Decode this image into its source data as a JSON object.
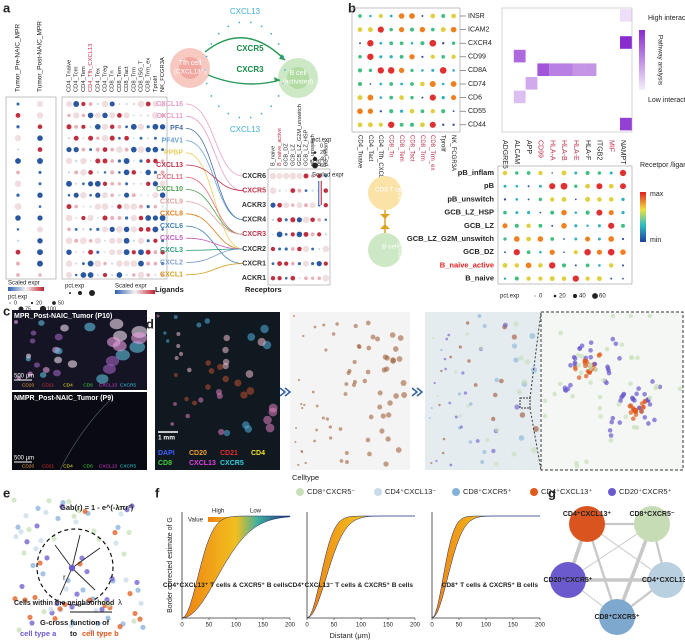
{
  "panel_a": {
    "label": "a",
    "sample_columns": [
      "Tumor_Pre-NAIC_MPR",
      "Tumor_Post-NAIC_MPR"
    ],
    "cell_columns": [
      "CD4_Tnaive",
      "CD4_Tcm",
      "CD4_Tem",
      "CD4_Tfh_CXCL13",
      "CD4_Tex",
      "CD4_Treg",
      "CD8_Tn",
      "CD8_Tem",
      "CD8_Tact",
      "CD8_Trm",
      "CD8_ISG_T",
      "CD8_Trm_ex",
      "Tprolif",
      "NK_FCGR3A"
    ],
    "left_legend": {
      "expr_title": "Scaled expr",
      "pct_title": "pct.exp",
      "pct_ticks": [
        0,
        20,
        50,
        75,
        100
      ]
    },
    "mid_legend": {
      "expr_title": "Scaled expr",
      "pct_title": "pct.exp"
    },
    "diagram": {
      "ligand_top": "CXCL13",
      "tfh": "Tfh cell",
      "tfh_sub": "(CXCL13⁺)",
      "receptor_1": "CXCR5",
      "receptor_2": "CXCR3",
      "b_cell": "B cell",
      "b_sub": "(activated)",
      "ligand_bottom": "CXCL13"
    },
    "ligands": [
      "CXCL16",
      "CXCL11",
      "PF4",
      "PF4V1",
      "PPBP",
      "CXCL13",
      "CXCL11",
      "CXCL10",
      "CXCL9",
      "CXCL8",
      "CXCL6",
      "CXCL5",
      "CXCL3",
      "CXCL2",
      "CXCL1"
    ],
    "ligand_colors": [
      "#e8a0c8",
      "#e8a0c8",
      "#4a6fa5",
      "#6aa0d8",
      "#e8d060",
      "#c0304a",
      "#e07080",
      "#50a050",
      "#e0a0a0",
      "#e08020",
      "#4080b0",
      "#c060c0",
      "#30a080",
      "#80a0d0",
      "#d0a020"
    ],
    "ligands_title": "Ligands",
    "receptors": [
      "CXCR6",
      "CXCR5",
      "ACKR3",
      "CXCR4",
      "CXCR3",
      "CXCR2",
      "CXCR1",
      "ACKR1"
    ],
    "receptor_colors": [
      "#333333",
      "#c0304a",
      "#333333",
      "#333333",
      "#c0304a",
      "#333333",
      "#333333",
      "#333333"
    ],
    "receptors_title": "Receptors",
    "receptor_columns": [
      "B_naive",
      "B_naive_active",
      "GCB_DZ",
      "GCB_LZ",
      "GCB_LZ_G2M_unswitch",
      "GCB_LZ_HSP",
      "pB_unswitch",
      "pB",
      "pB_inflam"
    ],
    "pct_legend": {
      "title": "pct.exp",
      "ticks": [
        0,
        20,
        40,
        60
      ]
    },
    "expr_legend": {
      "title": "Scaled expr"
    }
  },
  "panel_b": {
    "label": "b",
    "genes": [
      "INSR",
      "ICAM2",
      "CXCR4",
      "CD99",
      "CD8A",
      "CD74",
      "CD6",
      "CD55",
      "CD44"
    ],
    "cell_columns": [
      "CD4_Tnaive",
      "CD4_Tact",
      "CD4_Tfh_CXCL13",
      "CD8_Tn",
      "CD8_Tem",
      "CD8_Tact",
      "CD8_Trm",
      "CD8_Trm_ex",
      "Tprolif",
      "NK_FCGR3A"
    ],
    "high": "High interaction",
    "low": "Low interaction",
    "pathway": "Pathway analysis",
    "ligand_columns": [
      "ADGRE5",
      "ALCAM",
      "APP",
      "CD99",
      "HLA-A",
      "HLA-B",
      "HLA-E",
      "HLA-F",
      "ITGB2",
      "MIF",
      "NAMPT"
    ],
    "b_rows": [
      "pB_inflam",
      "pB",
      "pB_unswitch",
      "GCB_LZ_HSP",
      "GCB_LZ",
      "GCB_LZ_G2M_unswitch",
      "GCB_DZ",
      "B_naive_active",
      "B_naive"
    ],
    "cd8_cell": "CD8 T cell",
    "cd8_sub": "(Functional)",
    "b_cell": "B cell",
    "b_sub": "(activated)",
    "expr_title": "Recetpor /ligand expression",
    "max": "max",
    "min": "min",
    "pct_title": "pct.exp",
    "pct_ticks": [
      0,
      20,
      40,
      60
    ]
  },
  "panel_c": {
    "label": "c",
    "top_title": "MPR_Post-NAIC_Tumor (P10)",
    "bottom_title": "NMPR_Post-NAIC_Tumor (P9)",
    "scale": "500 μm",
    "channels": [
      "CD20",
      "CD21",
      "CD4",
      "CD8",
      "CXCL13",
      "CXCR5"
    ],
    "channel_colors": [
      "#f0a030",
      "#e03030",
      "#f0e020",
      "#40d040",
      "#e040e0",
      "#30d0e0"
    ]
  },
  "panel_d": {
    "label": "d",
    "scale": "1 mm",
    "channels": [
      "DAPI",
      "CD20",
      "CD21",
      "CD4",
      "CD8",
      "CXCL13",
      "CXCR5"
    ],
    "channel_colors": [
      "#4060ff",
      "#f0a030",
      "#e03030",
      "#f0e020",
      "#40d040",
      "#e040e0",
      "#30d0e0"
    ],
    "legend_title": "Celltype",
    "celltypes": [
      "CD8⁺CXCR5⁻",
      "CD4⁺CXCL13⁻",
      "CD8⁺CXCR5⁺",
      "CD4⁺CXCL13⁺",
      "CD20⁺CXCR5⁺"
    ],
    "celltype_colors": [
      "#c8e0b8",
      "#c8dbe8",
      "#85b0d8",
      "#e05a1e",
      "#6a5acd"
    ]
  },
  "panel_e": {
    "label": "e",
    "formula": "Gab(r) = 1 - e^(-λπr²)",
    "r": "r",
    "lambda": "λ",
    "neighborhood": "Cells within the neighborhood",
    "gcross": "G-cross function of",
    "type_a": "cell type a",
    "to": "to",
    "type_b": "cell type b"
  },
  "panel_f": {
    "label": "f",
    "ylabel": "Border corrected estimate of G",
    "xlabel": "Distant (μm)",
    "value_title": "Value",
    "high": "High",
    "low": "Low",
    "xlim": [
      0,
      200
    ],
    "xticks": [
      0,
      50,
      100,
      150,
      200
    ],
    "plots": [
      "CD4⁺CXCL13⁺ T cells & CXCR5⁺ B cells",
      "CD4⁺CXCL13⁻ T cells & CXCR5⁺ B cells",
      "CD8⁺ T cells & CXCR5⁺ B cells"
    ]
  },
  "panel_g": {
    "label": "g",
    "nodes": [
      "CD4⁺CXCL13⁺",
      "CD8⁺CXCR5⁻",
      "CD20⁺CXCR5⁺",
      "CD4⁺CXCL13⁻",
      "CD8⁺CXCR5⁺"
    ],
    "node_colors": [
      "#d9541e",
      "#c5dcb4",
      "#6a5acd",
      "#b8d0e0",
      "#7fa8cf"
    ]
  }
}
